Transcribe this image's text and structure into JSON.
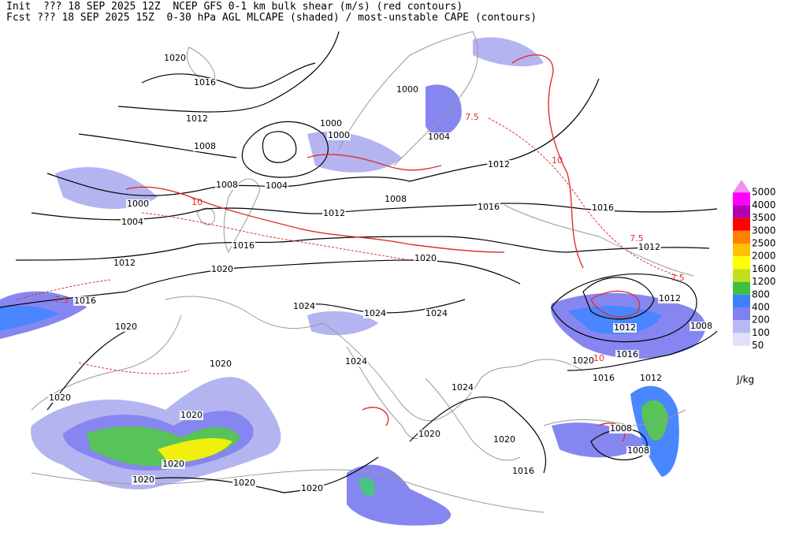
{
  "header": {
    "line1": "Init  ??? 18 SEP 2025 12Z  NCEP GFS 0-1 km bulk shear (m/s) (red contours)",
    "line2": "Fcst ??? 18 SEP 2025 15Z  0-30 hPa AGL MLCAPE (shaded) / most-unstable CAPE (contours)"
  },
  "colorbar": {
    "levels": [
      {
        "value": 5000,
        "color": "#f090f0"
      },
      {
        "value": 4000,
        "color": "#ff00ff"
      },
      {
        "value": 3500,
        "color": "#b000b0"
      },
      {
        "value": 3000,
        "color": "#ff0000"
      },
      {
        "value": 2500,
        "color": "#ff8000"
      },
      {
        "value": 2000,
        "color": "#ffc000"
      },
      {
        "value": 1600,
        "color": "#ffff00"
      },
      {
        "value": 1200,
        "color": "#c0e020"
      },
      {
        "value": 800,
        "color": "#40c040"
      },
      {
        "value": 400,
        "color": "#4080ff"
      },
      {
        "value": 200,
        "color": "#8080f0"
      },
      {
        "value": 100,
        "color": "#b8b8f4"
      },
      {
        "value": 50,
        "color": "#e0e0fa"
      }
    ],
    "unit": "J/kg"
  },
  "isobar_labels": [
    1020,
    1016,
    1012,
    1008,
    1000,
    1000,
    1000,
    1004,
    1012,
    1008,
    1004,
    1000,
    1004,
    1008,
    1012,
    1016,
    1016,
    1016,
    1012,
    1020,
    1020,
    1012,
    1012,
    1016,
    1012,
    1008,
    1020,
    1024,
    1024,
    1024,
    1024,
    1020,
    1016,
    1016,
    1012,
    1020,
    1020,
    1024,
    1020,
    1020,
    1020,
    1008,
    1008,
    1020,
    1020,
    1020,
    1020,
    1016
  ],
  "shear_labels": [
    "7.5",
    "10",
    "7.5",
    "7.5",
    "10",
    "7.5",
    "10"
  ]
}
